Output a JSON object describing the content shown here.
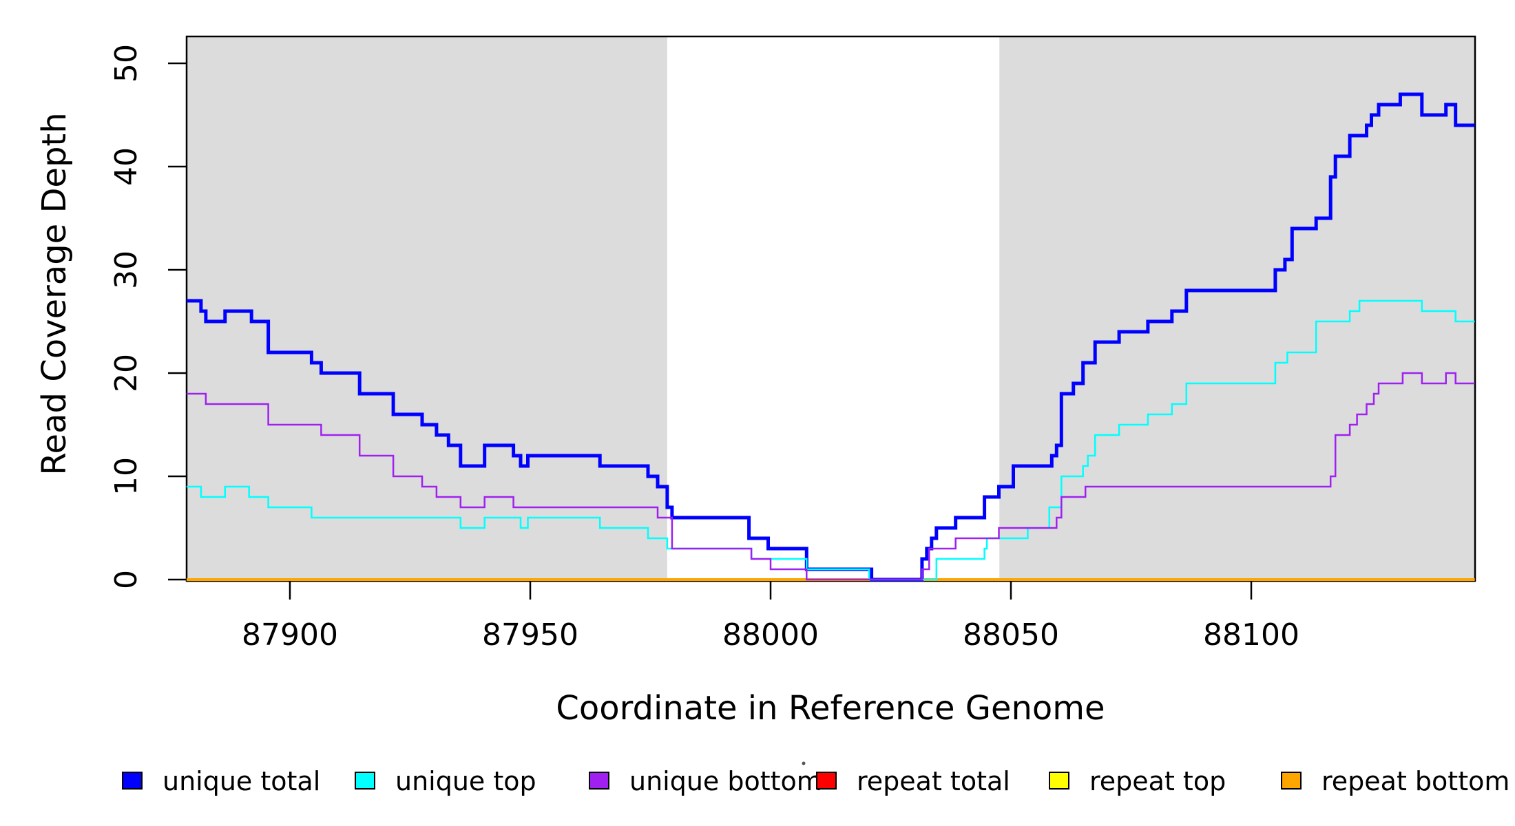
{
  "chart_data": {
    "type": "line",
    "subtype": "step-coverage-plot",
    "title": "",
    "xlabel": "Coordinate in Reference Genome",
    "ylabel": "Read Coverage Depth",
    "xlim": [
      87878.5,
      88146.5
    ],
    "ylim": [
      0,
      52.6
    ],
    "x_ticks": [
      87900,
      87950,
      88000,
      88050,
      88100
    ],
    "y_ticks": [
      0,
      10,
      20,
      30,
      40,
      50
    ],
    "grid": false,
    "background_color": "#FFFFFF",
    "shaded_band_color": "#DCDCDC",
    "shaded_regions": [
      {
        "name": "left-repeat-region",
        "from": 87878.5,
        "to": 87978.5
      },
      {
        "name": "right-repeat-region",
        "from": 88047.6,
        "to": 88146.5
      }
    ],
    "series": [
      {
        "name": "repeat total",
        "color": "#FF0000",
        "line_width": 2.5,
        "points": [
          [
            87878.5,
            0
          ]
        ]
      },
      {
        "name": "repeat top",
        "color": "#FFFF00",
        "line_width": 2.5,
        "points": [
          [
            87878.5,
            0
          ]
        ]
      },
      {
        "name": "repeat bottom",
        "color": "#FFA500",
        "line_width": 4,
        "points": [
          [
            87878.5,
            0
          ]
        ]
      },
      {
        "name": "unique total",
        "color": "#0000FF",
        "line_width": 5,
        "points": [
          [
            87878.5,
            27
          ],
          [
            87881.5,
            26
          ],
          [
            87882.5,
            25
          ],
          [
            87886.5,
            26
          ],
          [
            87892,
            25
          ],
          [
            87895.5,
            22
          ],
          [
            87904.5,
            21
          ],
          [
            87906.5,
            20
          ],
          [
            87914.5,
            18
          ],
          [
            87921.5,
            16
          ],
          [
            87927.5,
            15
          ],
          [
            87930.5,
            14
          ],
          [
            87933,
            13
          ],
          [
            87935.5,
            11
          ],
          [
            87940.5,
            13
          ],
          [
            87946.5,
            12
          ],
          [
            87948,
            11
          ],
          [
            87949.5,
            12
          ],
          [
            87964.5,
            11
          ],
          [
            87974.5,
            10
          ],
          [
            87976.5,
            9
          ],
          [
            87978.5,
            7
          ],
          [
            87979.5,
            6
          ],
          [
            87995.5,
            4
          ],
          [
            87999.5,
            3
          ],
          [
            88007.5,
            1
          ],
          [
            88021,
            0
          ],
          [
            88031.5,
            2
          ],
          [
            88032.5,
            3
          ],
          [
            88033.5,
            4
          ],
          [
            88034.5,
            5
          ],
          [
            88038.5,
            6
          ],
          [
            88044.5,
            8
          ],
          [
            88047.5,
            9
          ],
          [
            88050.5,
            11
          ],
          [
            88058.5,
            12
          ],
          [
            88059.5,
            13
          ],
          [
            88060.5,
            18
          ],
          [
            88063,
            19
          ],
          [
            88065,
            21
          ],
          [
            88067.5,
            23
          ],
          [
            88072.5,
            24
          ],
          [
            88078.5,
            25
          ],
          [
            88083.5,
            26
          ],
          [
            88086.5,
            28
          ],
          [
            88105,
            30
          ],
          [
            88107,
            31
          ],
          [
            88108.5,
            34
          ],
          [
            88113.5,
            35
          ],
          [
            88116.5,
            39
          ],
          [
            88117.5,
            41
          ],
          [
            88120.5,
            43
          ],
          [
            88124,
            44
          ],
          [
            88125,
            45
          ],
          [
            88126.5,
            46
          ],
          [
            88131,
            47
          ],
          [
            88135.5,
            45
          ],
          [
            88140.5,
            46
          ],
          [
            88142.5,
            44
          ]
        ]
      },
      {
        "name": "unique top",
        "color": "#00FFFF",
        "line_width": 2.5,
        "points": [
          [
            87878.5,
            9
          ],
          [
            87881.5,
            8
          ],
          [
            87886.5,
            9
          ],
          [
            87891.5,
            8
          ],
          [
            87895.5,
            7
          ],
          [
            87904.5,
            6
          ],
          [
            87935.5,
            5
          ],
          [
            87940.5,
            6
          ],
          [
            87948,
            5
          ],
          [
            87949.5,
            6
          ],
          [
            87964.5,
            5
          ],
          [
            87974.5,
            4
          ],
          [
            87978.5,
            3
          ],
          [
            87996,
            2
          ],
          [
            88007.5,
            1
          ],
          [
            88020.5,
            0
          ],
          [
            88034.5,
            2
          ],
          [
            88044.5,
            3
          ],
          [
            88045,
            4
          ],
          [
            88053.5,
            5
          ],
          [
            88058,
            7
          ],
          [
            88060.5,
            10
          ],
          [
            88065,
            11
          ],
          [
            88066,
            12
          ],
          [
            88067.5,
            14
          ],
          [
            88072.5,
            15
          ],
          [
            88078.5,
            16
          ],
          [
            88083.5,
            17
          ],
          [
            88086.5,
            19
          ],
          [
            88105,
            21
          ],
          [
            88107.5,
            22
          ],
          [
            88113.5,
            25
          ],
          [
            88120.5,
            26
          ],
          [
            88122.5,
            27
          ],
          [
            88135.5,
            26
          ],
          [
            88142.5,
            25
          ]
        ]
      },
      {
        "name": "unique bottom",
        "color": "#A020F0",
        "line_width": 2.5,
        "points": [
          [
            87878.5,
            18
          ],
          [
            87882.5,
            17
          ],
          [
            87895.5,
            15
          ],
          [
            87906.5,
            14
          ],
          [
            87914.5,
            12
          ],
          [
            87921.5,
            10
          ],
          [
            87927.5,
            9
          ],
          [
            87930.5,
            8
          ],
          [
            87935.5,
            7
          ],
          [
            87940.5,
            8
          ],
          [
            87946.5,
            7
          ],
          [
            87976.5,
            6
          ],
          [
            87979.5,
            3
          ],
          [
            87996,
            2
          ],
          [
            88000,
            1
          ],
          [
            88007.5,
            0
          ],
          [
            88031.5,
            1
          ],
          [
            88033,
            3
          ],
          [
            88038.5,
            4
          ],
          [
            88047.5,
            5
          ],
          [
            88059.5,
            6
          ],
          [
            88060.5,
            8
          ],
          [
            88065.5,
            9
          ],
          [
            88116.5,
            10
          ],
          [
            88117.5,
            14
          ],
          [
            88120.5,
            15
          ],
          [
            88122,
            16
          ],
          [
            88124,
            17
          ],
          [
            88125.5,
            18
          ],
          [
            88126.5,
            19
          ],
          [
            88131.5,
            20
          ],
          [
            88135.5,
            19
          ],
          [
            88140.5,
            20
          ],
          [
            88142.5,
            19
          ]
        ]
      }
    ],
    "legend": {
      "position": "bottom",
      "entries": [
        {
          "label": "unique total",
          "color": "#0000FF"
        },
        {
          "label": "unique top",
          "color": "#00FFFF"
        },
        {
          "label": "unique bottom",
          "color": "#A020F0"
        },
        {
          "label": "repeat total",
          "color": "#FF0000"
        },
        {
          "label": "repeat top",
          "color": "#FFFF00"
        },
        {
          "label": "repeat bottom",
          "color": "#FFA500"
        }
      ]
    }
  }
}
